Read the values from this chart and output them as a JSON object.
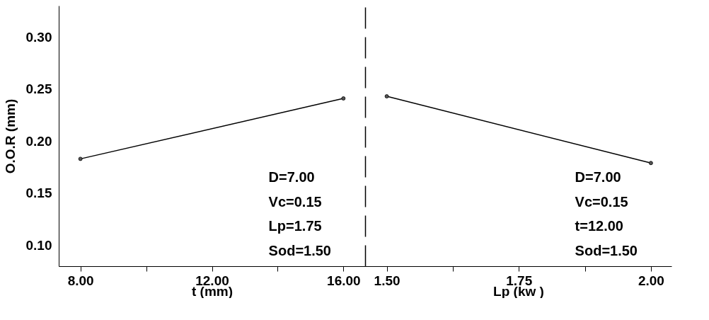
{
  "chart_data": [
    {
      "type": "line",
      "x": [
        8,
        16
      ],
      "values": [
        0.183,
        0.241
      ],
      "color": "#000000",
      "marker": "circle",
      "line_style": "solid",
      "xlabel": "t (mm)",
      "ylabel": "O.O.R (mm)",
      "xlim": [
        7.34,
        16.66
      ],
      "ylim": [
        0.08,
        0.33
      ],
      "xticks": [
        {
          "value": 8,
          "label": "8.00"
        },
        {
          "value": 10,
          "label": null
        },
        {
          "value": 12,
          "label": "12.00"
        },
        {
          "value": 14,
          "label": null
        },
        {
          "value": 16,
          "label": "16.00"
        }
      ],
      "yticks": [
        {
          "value": 0.1,
          "label": "0.10"
        },
        {
          "value": 0.15,
          "label": "0.15"
        },
        {
          "value": 0.2,
          "label": "0.20"
        },
        {
          "value": 0.25,
          "label": "0.25"
        },
        {
          "value": 0.3,
          "label": "0.30"
        }
      ],
      "annotations": [
        "D=7.00",
        "Vc=0.15",
        "Lp=1.75",
        "Sod=1.50"
      ],
      "grid": false
    },
    {
      "type": "line",
      "x": [
        1.5,
        2.0
      ],
      "values": [
        0.243,
        0.179
      ],
      "color": "#000000",
      "marker": "circle",
      "line_style": "solid",
      "xlabel": "Lp (kw )",
      "xlim": [
        1.459,
        2.039
      ],
      "ylim": [
        0.08,
        0.33
      ],
      "tick_labels": "x",
      "xticks": [
        {
          "value": 1.5,
          "label": "1.50"
        },
        {
          "value": 1.625,
          "label": null
        },
        {
          "value": 1.75,
          "label": "1.75"
        },
        {
          "value": 1.875,
          "label": null
        },
        {
          "value": 2.0,
          "label": "2.00"
        }
      ],
      "annotations": [
        "D=7.00",
        "Vc=0.15",
        "t=12.00",
        "Sod=1.50"
      ],
      "grid": false
    }
  ]
}
